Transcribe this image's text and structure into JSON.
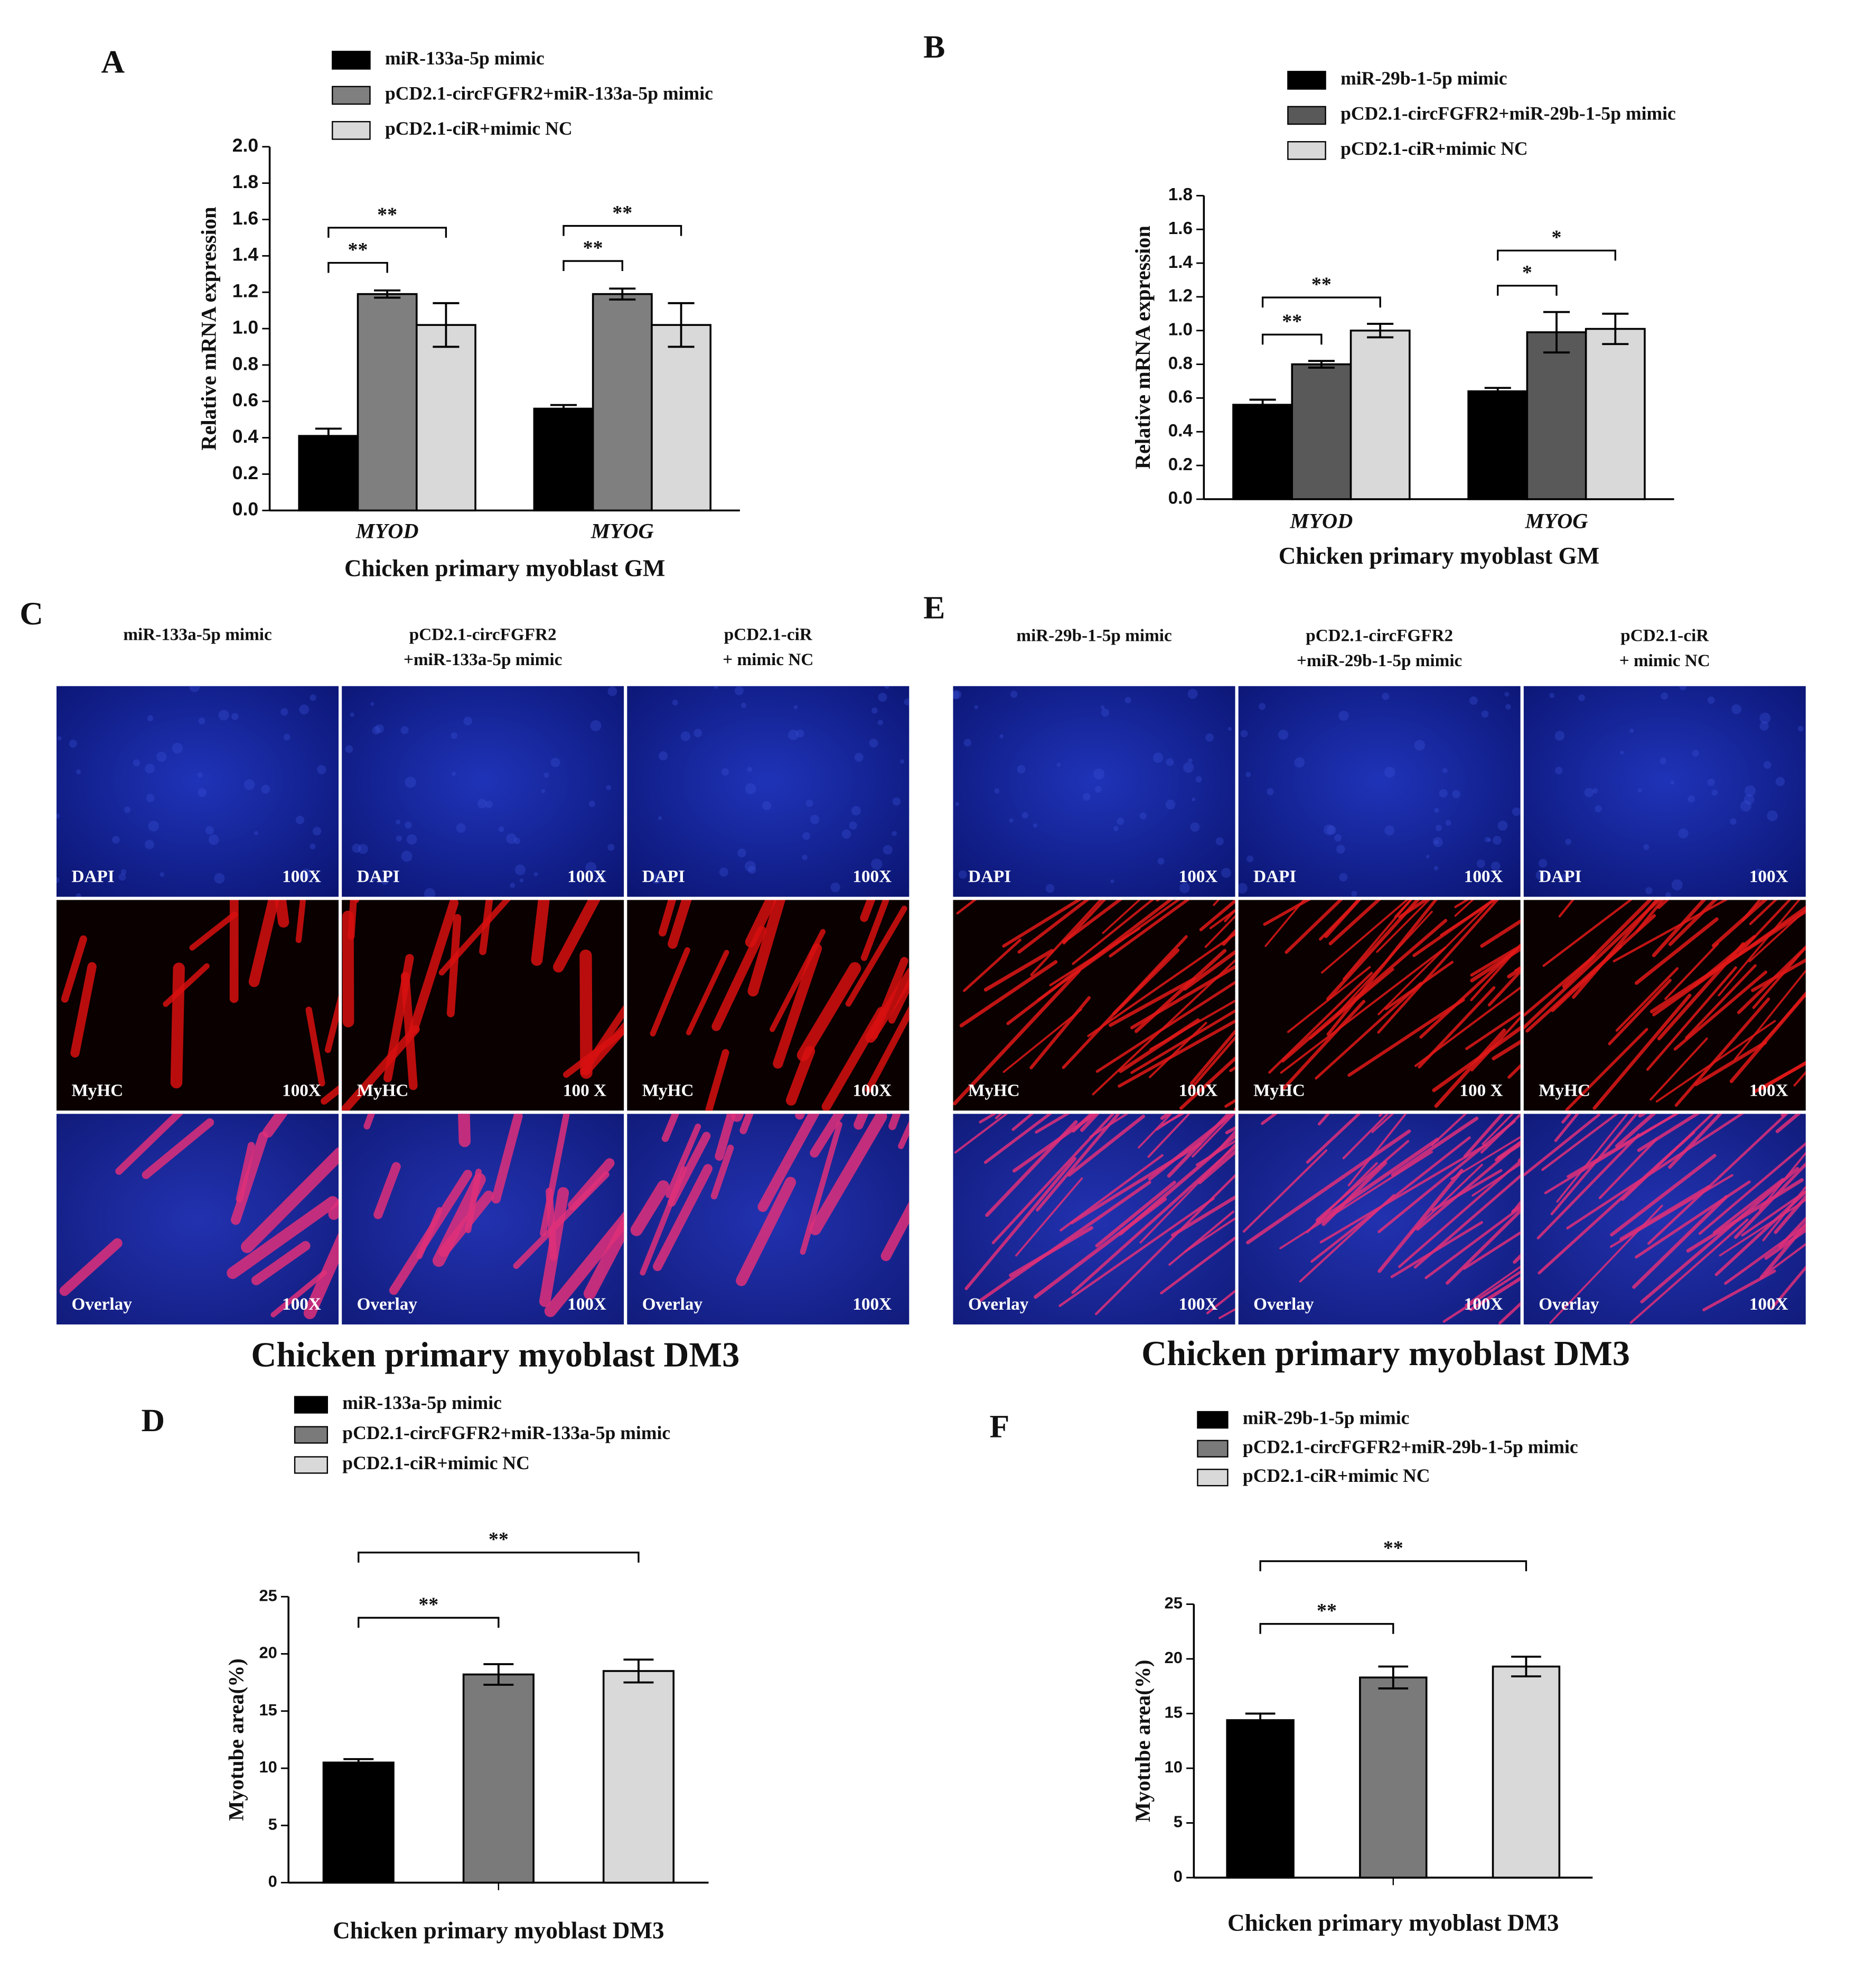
{
  "chart_data": [
    {
      "type": "bar",
      "panel_label": "A",
      "categories": [
        "MYOD",
        "MYOG"
      ],
      "series": [
        {
          "name": "miR-133a-5p mimic",
          "color": "#000000",
          "values": [
            0.41,
            0.56
          ],
          "errors": [
            0.04,
            0.02
          ]
        },
        {
          "name": "pCD2.1-circFGFR2+miR-133a-5p mimic",
          "color": "#7f7f7f",
          "values": [
            1.19,
            1.19
          ],
          "errors": [
            0.02,
            0.03
          ]
        },
        {
          "name": "pCD2.1-ciR+mimic NC",
          "color": "#d9d9d9",
          "values": [
            1.02,
            1.02
          ],
          "errors": [
            0.12,
            0.12
          ]
        }
      ],
      "ylim": [
        0,
        2
      ],
      "yticks": [
        {
          "value": 0,
          "label": "0.0"
        },
        0.2,
        0.4,
        0.6,
        0.8,
        {
          "value": 1,
          "label": "1.0"
        },
        1.2,
        1.4,
        1.6,
        1.8,
        {
          "value": 2,
          "label": "2.0"
        }
      ],
      "y_label": "Relative mRNA expression",
      "x_label": "Chicken primary myoblast GM",
      "significance": [
        [
          "**",
          "**"
        ],
        [
          "**",
          "**"
        ]
      ]
    },
    {
      "type": "bar",
      "panel_label": "B",
      "categories": [
        "MYOD",
        "MYOG"
      ],
      "series": [
        {
          "name": "miR-29b-1-5p mimic",
          "color": "#000000",
          "values": [
            0.56,
            0.64
          ],
          "errors": [
            0.03,
            0.02
          ]
        },
        {
          "name": "pCD2.1-circFGFR2+miR-29b-1-5p mimic",
          "color": "#595959",
          "values": [
            0.8,
            0.99
          ],
          "errors": [
            0.02,
            0.12
          ]
        },
        {
          "name": "pCD2.1-ciR+mimic NC",
          "color": "#d9d9d9",
          "values": [
            1.0,
            1.01
          ],
          "errors": [
            0.04,
            0.09
          ]
        }
      ],
      "ylim": [
        0,
        1.8
      ],
      "yticks": [
        {
          "value": 0,
          "label": "0.0"
        },
        0.2,
        0.4,
        0.6,
        0.8,
        {
          "value": 1,
          "label": "1.0"
        },
        1.2,
        1.4,
        1.6,
        1.8
      ],
      "y_label": "Relative mRNA expression",
      "x_label": "Chicken primary myoblast GM",
      "significance": [
        [
          "**",
          "**"
        ],
        [
          "*",
          "*"
        ]
      ]
    },
    {
      "type": "bar",
      "panel_label": "D",
      "categories": [
        null
      ],
      "series": [
        {
          "name": "miR-133a-5p mimic",
          "color": "#000000",
          "values": [
            10.5
          ],
          "errors": [
            0.3
          ]
        },
        {
          "name": "pCD2.1-circFGFR2+miR-133a-5p mimic",
          "color": "#7a7a7a",
          "values": [
            18.2
          ],
          "errors": [
            0.9
          ]
        },
        {
          "name": "pCD2.1-ciR+mimic NC",
          "color": "#d9d9d9",
          "values": [
            18.5
          ],
          "errors": [
            1.0
          ]
        }
      ],
      "ylim": [
        0,
        25
      ],
      "yticks": [
        0,
        5,
        10,
        15,
        20,
        25
      ],
      "y_label": "Myotube area(%)",
      "x_label": "Chicken primary myoblast DM3",
      "significance": [
        [
          "**",
          "**"
        ]
      ]
    },
    {
      "type": "bar",
      "panel_label": "F",
      "categories": [
        null
      ],
      "series": [
        {
          "name": "miR-29b-1-5p mimic",
          "color": "#000000",
          "values": [
            14.4
          ],
          "errors": [
            0.6
          ]
        },
        {
          "name": "pCD2.1-circFGFR2+miR-29b-1-5p mimic",
          "color": "#7a7a7a",
          "values": [
            18.3
          ],
          "errors": [
            1.0
          ]
        },
        {
          "name": "pCD2.1-ciR+mimic NC",
          "color": "#d9d9d9",
          "values": [
            19.3
          ],
          "errors": [
            0.9
          ]
        }
      ],
      "ylim": [
        0,
        25
      ],
      "yticks": [
        0,
        5,
        10,
        15,
        20,
        25
      ],
      "y_label": "Myotube area(%)",
      "x_label": "Chicken primary myoblast DM3",
      "significance": [
        [
          "**",
          "**"
        ]
      ]
    }
  ],
  "image_panels": [
    {
      "panel_label": "C",
      "columns": [
        [
          "miR-133a-5p mimic"
        ],
        [
          "pCD2.1-circFGFR2",
          "+miR-133a-5p mimic"
        ],
        [
          "pCD2.1-ciR",
          "+ mimic NC"
        ]
      ],
      "rows": [
        "DAPI",
        "MyHC",
        "Overlay"
      ],
      "magnifications": [
        [
          "100X",
          "100X",
          "100X"
        ],
        [
          "100X",
          "100 X",
          "100X"
        ],
        [
          "100X",
          "100X",
          "100X"
        ]
      ],
      "caption": "Chicken primary myoblast DM3"
    },
    {
      "panel_label": "E",
      "columns": [
        [
          "miR-29b-1-5p mimic"
        ],
        [
          "pCD2.1-circFGFR2",
          "+miR-29b-1-5p mimic"
        ],
        [
          "pCD2.1-ciR",
          "+ mimic NC"
        ]
      ],
      "rows": [
        "DAPI",
        "MyHC",
        "Overlay"
      ],
      "magnifications": [
        [
          "100X",
          "100X",
          "100X"
        ],
        [
          "100X",
          "100 X",
          "100X"
        ],
        [
          "100X",
          "100X",
          "100X"
        ]
      ],
      "caption": "Chicken primary myoblast DM3"
    }
  ]
}
